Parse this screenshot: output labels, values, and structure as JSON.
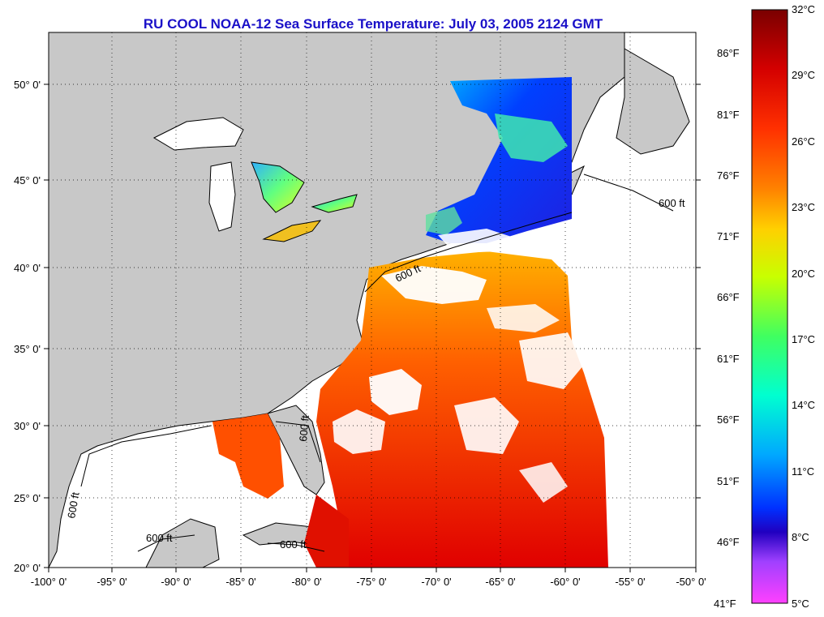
{
  "title": "RU COOL  NOAA-12  Sea Surface Temperature:  July 03, 2005 2124 GMT",
  "map": {
    "lon_range": [
      -100,
      -50
    ],
    "lat_range": [
      20,
      52.5
    ],
    "lon_ticks": [
      "-100° 0'",
      "-95° 0'",
      "-90° 0'",
      "-85° 0'",
      "-80° 0'",
      "-75° 0'",
      "-70° 0'",
      "-65° 0'",
      "-60° 0'",
      "-55° 0'",
      "-50° 0'"
    ],
    "lat_ticks": [
      "20° 0'",
      "25° 0'",
      "30° 0'",
      "35° 0'",
      "40° 0'",
      "45° 0'",
      "50° 0'"
    ],
    "grid": "dotted",
    "land_color": "#c8c8c8",
    "cloud_color": "#ffffff",
    "isobath_labels": [
      "600 ft",
      "600 ft",
      "600 ft",
      "600 ft",
      "600 ft",
      "600 ft"
    ]
  },
  "colorbar": {
    "celsius": [
      "32°C",
      "29°C",
      "26°C",
      "23°C",
      "20°C",
      "17°C",
      "14°C",
      "11°C",
      "8°C",
      "5°C"
    ],
    "fahrenheit": [
      "86°F",
      "81°F",
      "76°F",
      "71°F",
      "66°F",
      "61°F",
      "56°F",
      "51°F",
      "46°F",
      "41°F"
    ],
    "colors": [
      "#7a0000",
      "#d40000",
      "#ff3000",
      "#ff8000",
      "#ffd000",
      "#c8ff00",
      "#40ff60",
      "#00ffd0",
      "#00a8ff",
      "#0030ff",
      "#2000c0",
      "#a040ff",
      "#ff40ff"
    ]
  }
}
